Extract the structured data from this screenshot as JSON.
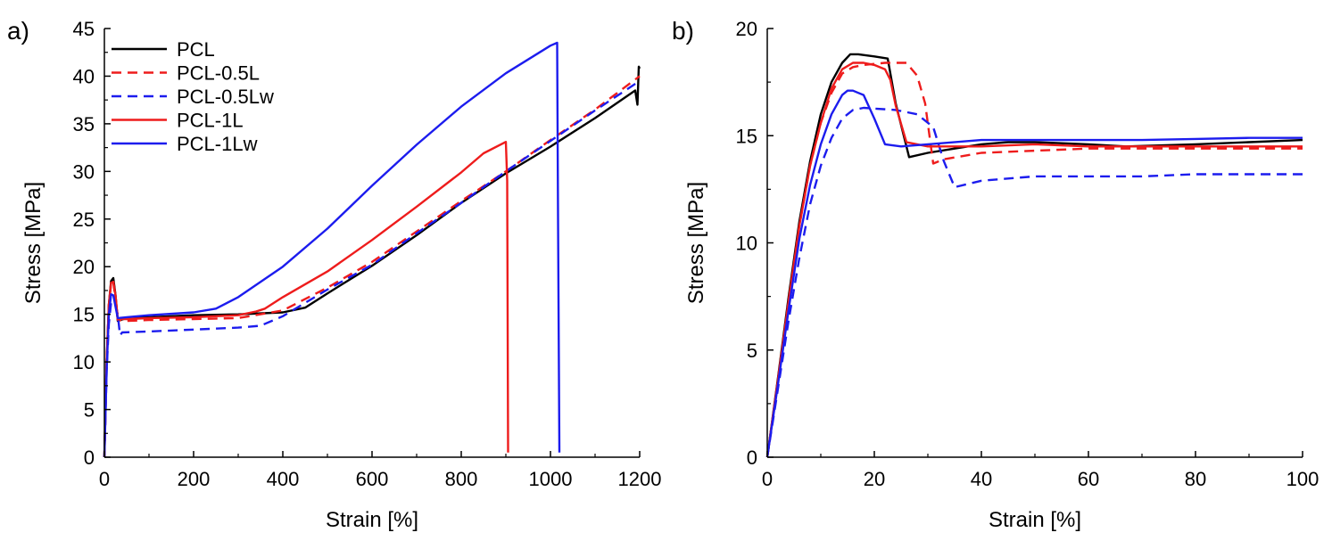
{
  "chart_data": [
    {
      "type": "line",
      "panel_label": "a)",
      "xlabel": "Strain [%]",
      "ylabel": "Stress [MPa]",
      "xlim": [
        0,
        1200
      ],
      "ylim": [
        0,
        45
      ],
      "xticks": [
        0,
        200,
        400,
        600,
        800,
        1000,
        1200
      ],
      "yticks": [
        0,
        5,
        10,
        15,
        20,
        25,
        30,
        35,
        40,
        45
      ],
      "grid": false,
      "legend_position": "top-left",
      "series": [
        {
          "name": "PCL",
          "color": "#000000",
          "dash": "solid",
          "x": [
            0,
            5,
            10,
            15,
            20,
            25,
            30,
            50,
            100,
            200,
            300,
            400,
            450,
            500,
            600,
            700,
            800,
            900,
            1000,
            1100,
            1190,
            1195,
            1198,
            1200
          ],
          "y": [
            0,
            10,
            16,
            18.5,
            18.8,
            17,
            14.3,
            14.6,
            14.7,
            14.9,
            15,
            15.2,
            15.7,
            17.2,
            20.1,
            23.3,
            26.7,
            29.8,
            32.6,
            35.6,
            38.5,
            37,
            41,
            40.8
          ]
        },
        {
          "name": "PCL-0.5L",
          "color": "#ee1c1c",
          "dash": "dashed",
          "x": [
            0,
            5,
            10,
            15,
            20,
            25,
            30,
            50,
            100,
            200,
            300,
            400,
            500,
            600,
            700,
            800,
            900,
            1000,
            1100,
            1200
          ],
          "y": [
            0,
            10,
            16,
            18.2,
            18.4,
            16.5,
            14.4,
            14.3,
            14.4,
            14.5,
            14.6,
            15.4,
            17.8,
            20.5,
            23.7,
            26.9,
            30,
            33.3,
            36.5,
            40
          ]
        },
        {
          "name": "PCL-0.5Lw",
          "color": "#1c1cee",
          "dash": "dashed",
          "x": [
            0,
            5,
            10,
            15,
            20,
            25,
            30,
            35,
            40,
            100,
            200,
            300,
            350,
            400,
            500,
            600,
            700,
            800,
            900,
            1000,
            1100,
            1200
          ],
          "y": [
            0,
            9,
            14,
            16.2,
            16.3,
            16,
            15,
            12.8,
            13.1,
            13.2,
            13.4,
            13.6,
            13.8,
            14.8,
            17.6,
            20.2,
            23.5,
            26.7,
            30,
            33.2,
            36.4,
            39.5
          ]
        },
        {
          "name": "PCL-1L",
          "color": "#ee1c1c",
          "dash": "solid",
          "x": [
            0,
            5,
            10,
            15,
            20,
            25,
            30,
            50,
            100,
            200,
            300,
            340,
            360,
            400,
            500,
            600,
            700,
            800,
            850,
            900,
            903,
            905
          ],
          "y": [
            0,
            10,
            16,
            18.3,
            18.4,
            17,
            14.5,
            14.5,
            14.6,
            14.7,
            14.9,
            15.3,
            15.6,
            16.8,
            19.5,
            22.8,
            26.3,
            29.9,
            31.9,
            33.1,
            29,
            0.5
          ]
        },
        {
          "name": "PCL-1Lw",
          "color": "#1c1cee",
          "dash": "solid",
          "x": [
            0,
            5,
            10,
            15,
            20,
            25,
            30,
            50,
            100,
            200,
            250,
            300,
            400,
            500,
            600,
            700,
            800,
            900,
            1000,
            1015,
            1017,
            1020
          ],
          "y": [
            0,
            9,
            15,
            17.1,
            17,
            15.8,
            14.6,
            14.7,
            14.9,
            15.2,
            15.6,
            16.8,
            20,
            24,
            28.5,
            32.8,
            36.8,
            40.3,
            43.2,
            43.5,
            25,
            0.5
          ]
        }
      ]
    },
    {
      "type": "line",
      "panel_label": "b)",
      "xlabel": "Strain [%]",
      "ylabel": "Stress [MPa]",
      "xlim": [
        0,
        100
      ],
      "ylim": [
        0,
        20
      ],
      "xticks": [
        0,
        20,
        40,
        60,
        80,
        100
      ],
      "yticks": [
        0,
        5,
        10,
        15,
        20
      ],
      "grid": false,
      "series": [
        {
          "name": "PCL",
          "color": "#000000",
          "dash": "solid",
          "x": [
            0,
            2,
            4,
            6,
            8,
            10,
            12,
            14,
            15.5,
            17,
            20,
            22.5,
            24,
            26.5,
            30,
            35,
            40,
            45,
            50,
            60,
            67,
            80,
            90,
            100
          ],
          "y": [
            0,
            3.7,
            7.5,
            11,
            13.8,
            16,
            17.5,
            18.4,
            18.8,
            18.8,
            18.7,
            18.6,
            16.5,
            14,
            14.2,
            14.4,
            14.6,
            14.7,
            14.7,
            14.6,
            14.5,
            14.6,
            14.7,
            14.8
          ]
        },
        {
          "name": "PCL-0.5L",
          "color": "#ee1c1c",
          "dash": "dashed",
          "x": [
            0,
            2,
            4,
            6,
            8,
            10,
            12,
            14,
            16,
            18,
            22,
            24,
            26,
            28,
            29.5,
            31,
            33,
            40,
            50,
            60,
            70,
            80,
            90,
            100
          ],
          "y": [
            0,
            3.6,
            7.3,
            10.8,
            13.6,
            15.6,
            17,
            17.9,
            18.2,
            18.3,
            18.4,
            18.4,
            18.4,
            17.8,
            16.5,
            13.7,
            13.9,
            14.2,
            14.3,
            14.4,
            14.4,
            14.4,
            14.4,
            14.4
          ]
        },
        {
          "name": "PCL-0.5Lw",
          "color": "#1c1cee",
          "dash": "dashed",
          "x": [
            0,
            2,
            4,
            6,
            8,
            10,
            12,
            14,
            16,
            18,
            24,
            28,
            31,
            33,
            35,
            40,
            45,
            50,
            60,
            70,
            80,
            90,
            100
          ],
          "y": [
            0,
            3.2,
            6.4,
            9.3,
            11.8,
            13.6,
            14.9,
            15.8,
            16.2,
            16.3,
            16.2,
            16,
            15.4,
            13.8,
            12.6,
            12.9,
            13,
            13.1,
            13.1,
            13.1,
            13.2,
            13.2,
            13.2
          ]
        },
        {
          "name": "PCL-1L",
          "color": "#ee1c1c",
          "dash": "solid",
          "x": [
            0,
            2,
            4,
            6,
            8,
            10,
            12,
            14,
            16,
            18,
            20,
            22,
            23,
            24,
            26,
            30,
            35,
            40,
            50,
            60,
            70,
            80,
            90,
            100
          ],
          "y": [
            0,
            3.6,
            7.3,
            10.8,
            13.6,
            15.6,
            17.2,
            18.1,
            18.4,
            18.4,
            18.3,
            18.1,
            17.6,
            16.4,
            14.7,
            14.5,
            14.5,
            14.5,
            14.6,
            14.5,
            14.5,
            14.5,
            14.5,
            14.5
          ]
        },
        {
          "name": "PCL-1Lw",
          "color": "#1c1cee",
          "dash": "solid",
          "x": [
            0,
            2,
            4,
            6,
            8,
            10,
            12,
            14,
            15,
            16,
            17,
            18,
            20,
            22,
            25,
            30,
            40,
            50,
            60,
            70,
            80,
            90,
            100
          ],
          "y": [
            0,
            3.4,
            6.9,
            10.2,
            12.7,
            14.6,
            16,
            16.9,
            17.1,
            17.1,
            17,
            16.9,
            15.8,
            14.6,
            14.5,
            14.6,
            14.8,
            14.8,
            14.8,
            14.8,
            14.85,
            14.9,
            14.9
          ]
        }
      ]
    }
  ]
}
